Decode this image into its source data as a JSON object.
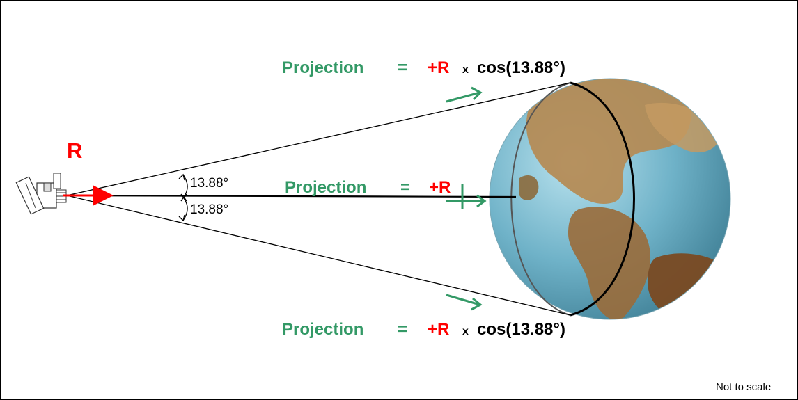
{
  "colors": {
    "accent_green": "#339966",
    "accent_red": "#ff0000",
    "ocean": "#6fb2c8",
    "land": "#b58a52"
  },
  "icons": {
    "satellite": "satellite-icon",
    "earth": "earth-globe-icon"
  },
  "vector_label": "R",
  "angle_upper": "13.88°",
  "angle_lower": "13.88°",
  "projection_top": {
    "word": "Projection",
    "equals": "=",
    "sign_r": "+R",
    "times": "x",
    "cos": "cos(13.88°)"
  },
  "projection_middle": {
    "word": "Projection",
    "equals": "=",
    "sign_r": "+R"
  },
  "projection_bottom": {
    "word": "Projection",
    "equals": "=",
    "sign_r": "+R",
    "times": "x",
    "cos": "cos(13.88°)"
  },
  "scale_note": "Not to scale"
}
